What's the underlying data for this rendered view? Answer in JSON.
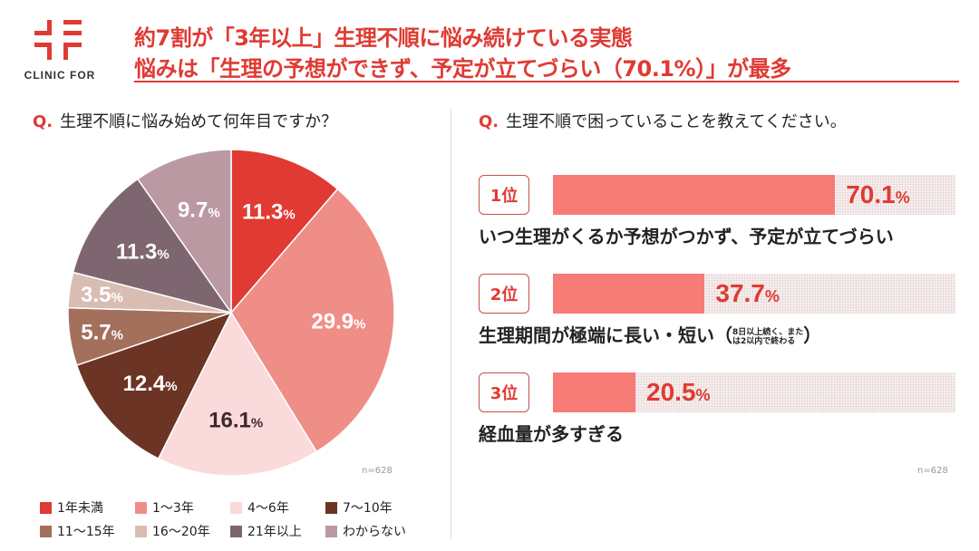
{
  "brand": {
    "name": "CLINIC FOR",
    "color": "#e03a33"
  },
  "header": {
    "title_line1": "約7割が「3年以上」生理不順に悩み続けている実態",
    "title_line2": "悩みは「生理の予想ができず、予定が立てづらい（70.1%）」が最多"
  },
  "left": {
    "question_mark": "Q.",
    "question": "生理不順に悩み始めて何年目ですか？",
    "n": "n=628"
  },
  "right": {
    "question_mark": "Q.",
    "question": "生理不順で困っていることを教えてください。",
    "n": "n=628"
  },
  "chart_data": [
    {
      "type": "pie",
      "unit": "%",
      "slices": [
        {
          "name": "1年未満",
          "value": 11.3,
          "label": "11.3",
          "color": "#e03a33"
        },
        {
          "name": "1〜3年",
          "value": 29.9,
          "label": "29.9",
          "color": "#ef8d87"
        },
        {
          "name": "4〜6年",
          "value": 16.1,
          "label": "16.1",
          "color": "#fadada"
        },
        {
          "name": "7〜10年",
          "value": 12.4,
          "label": "12.4",
          "color": "#6b3424"
        },
        {
          "name": "11〜15年",
          "value": 5.7,
          "label": "5.7",
          "color": "#a3705c"
        },
        {
          "name": "16〜20年",
          "value": 3.5,
          "label": "3.5",
          "color": "#d8bdb3"
        },
        {
          "name": "21年以上",
          "value": 11.3,
          "label": "11.3",
          "color": "#7e6670"
        },
        {
          "name": "わからない",
          "value": 9.7,
          "label": "9.7",
          "color": "#bb99a3"
        }
      ],
      "legend": "bottom"
    },
    {
      "type": "bar",
      "orientation": "horizontal",
      "unit": "%",
      "xlim": [
        0,
        100
      ],
      "bar_color": "#f77b77",
      "items": [
        {
          "rank": "1位",
          "value": 70.1,
          "label": "70.1",
          "category": "いつ生理がくるか予想がつかず、予定が立てづらい",
          "note": ""
        },
        {
          "rank": "2位",
          "value": 37.7,
          "label": "37.7",
          "category": "生理期間が極端に長い・短い",
          "note_line1": "8日以上続く、また",
          "note_line2": "は2以内で終わる"
        },
        {
          "rank": "3位",
          "value": 20.5,
          "label": "20.5",
          "category": "経血量が多すぎる",
          "note": ""
        }
      ]
    }
  ]
}
